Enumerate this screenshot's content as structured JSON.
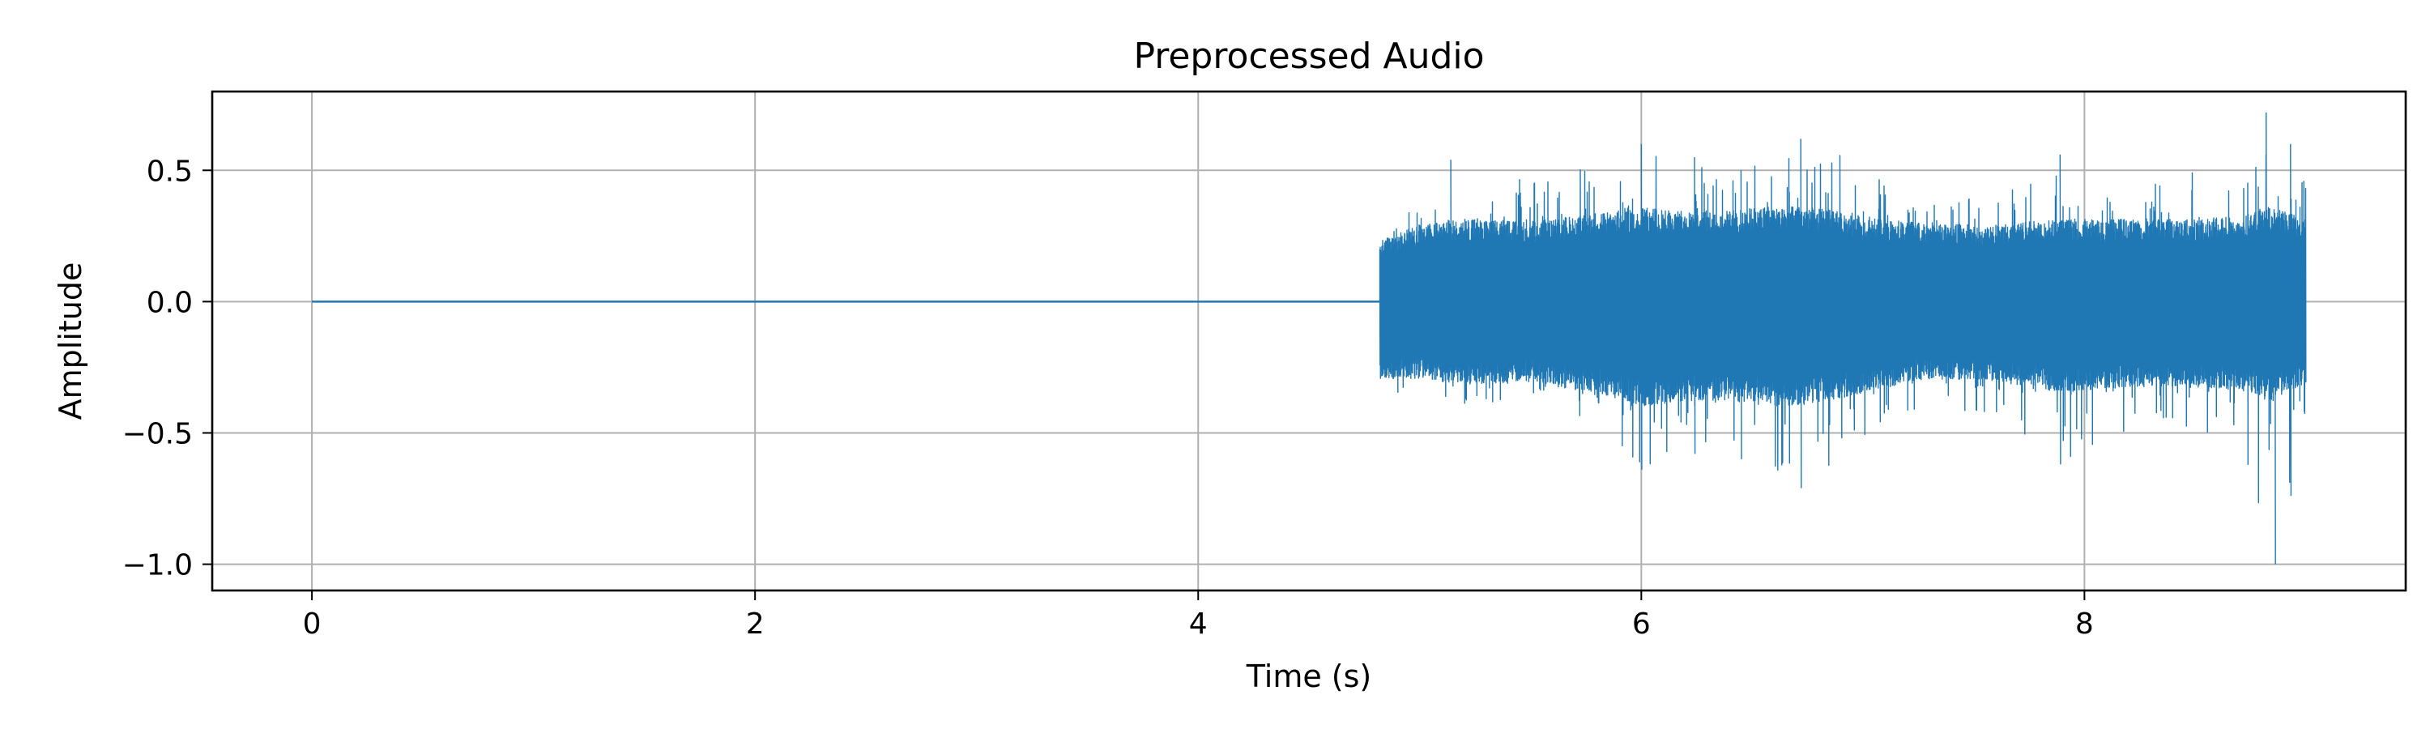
{
  "chart_data": {
    "type": "line",
    "title": "Preprocessed Audio",
    "xlabel": "Time (s)",
    "ylabel": "Amplitude",
    "xlim": [
      -0.45,
      9.45
    ],
    "ylim": [
      -1.1,
      0.8
    ],
    "xticks": [
      0,
      2,
      4,
      6,
      8
    ],
    "xtick_labels": [
      "0",
      "2",
      "4",
      "6",
      "8"
    ],
    "yticks": [
      0.5,
      0.0,
      -0.5,
      -1.0
    ],
    "ytick_labels": [
      "0.5",
      "0.0",
      "−0.5",
      "−1.0"
    ],
    "grid": true,
    "series": [
      {
        "color": "#1f77b4",
        "duration_s": 9.0,
        "silence_end_s": 4.82,
        "envelope": {
          "t": [
            4.82,
            5.0,
            5.2,
            5.5,
            5.8,
            6.0,
            6.2,
            6.4,
            6.6,
            6.8,
            7.0,
            7.3,
            7.6,
            7.9,
            8.2,
            8.5,
            8.7,
            8.85,
            9.0
          ],
          "max": [
            0.22,
            0.4,
            0.54,
            0.45,
            0.52,
            0.6,
            0.55,
            0.5,
            0.6,
            0.62,
            0.5,
            0.38,
            0.42,
            0.56,
            0.48,
            0.5,
            0.52,
            0.72,
            0.46
          ],
          "min": [
            -0.32,
            -0.4,
            -0.42,
            -0.38,
            -0.5,
            -0.64,
            -0.58,
            -0.6,
            -0.65,
            -0.71,
            -0.52,
            -0.38,
            -0.45,
            -0.62,
            -0.5,
            -0.52,
            -0.5,
            -1.0,
            -0.42
          ],
          "dense_max": [
            0.22,
            0.28,
            0.3,
            0.29,
            0.32,
            0.34,
            0.33,
            0.33,
            0.35,
            0.34,
            0.31,
            0.28,
            0.28,
            0.3,
            0.3,
            0.3,
            0.31,
            0.34,
            0.3
          ],
          "dense_min": [
            -0.28,
            -0.28,
            -0.3,
            -0.29,
            -0.33,
            -0.38,
            -0.36,
            -0.36,
            -0.38,
            -0.37,
            -0.33,
            -0.28,
            -0.29,
            -0.33,
            -0.31,
            -0.31,
            -0.32,
            -0.36,
            -0.3
          ]
        }
      }
    ]
  }
}
